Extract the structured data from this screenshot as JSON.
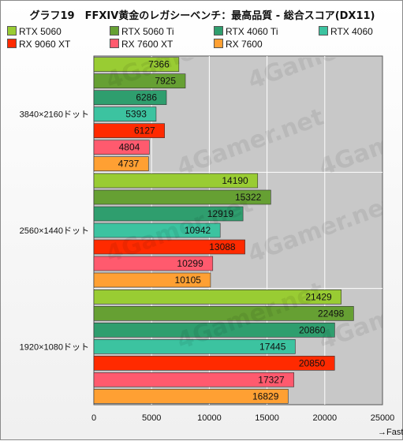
{
  "chart_data": {
    "type": "bar",
    "orientation": "horizontal",
    "title": "グラフ19　FFXIV黄金のレガシーベンチ：最高品質 - 総合スコア(DX11)",
    "categories": [
      "3840×2160ドット",
      "2560×1440ドット",
      "1920×1080ドット"
    ],
    "series": [
      {
        "name": "RTX 5060",
        "color": "#99cc33",
        "values": [
          7366,
          14190,
          21429
        ]
      },
      {
        "name": "RTX 5060 Ti",
        "color": "#66a033",
        "values": [
          7925,
          15322,
          22498
        ]
      },
      {
        "name": "RTX 4060 Ti",
        "color": "#2f9e6e",
        "values": [
          6286,
          12919,
          20860
        ]
      },
      {
        "name": "RTX 4060",
        "color": "#3cc3a0",
        "values": [
          5393,
          10942,
          17445
        ]
      },
      {
        "name": "RX 9060 XT",
        "color": "#ff2a00",
        "values": [
          6127,
          13088,
          20850
        ]
      },
      {
        "name": "RX 7600 XT",
        "color": "#ff5a6e",
        "values": [
          4804,
          10299,
          17327
        ]
      },
      {
        "name": "RX 7600",
        "color": "#ffa033",
        "values": [
          4737,
          10105,
          16829
        ]
      }
    ],
    "xlim": [
      0,
      25000
    ],
    "xticks": [
      0,
      5000,
      10000,
      15000,
      20000,
      25000
    ],
    "xlabel": "→Fast",
    "grid": true,
    "legend": "top"
  },
  "watermark": "4Gamer.net"
}
